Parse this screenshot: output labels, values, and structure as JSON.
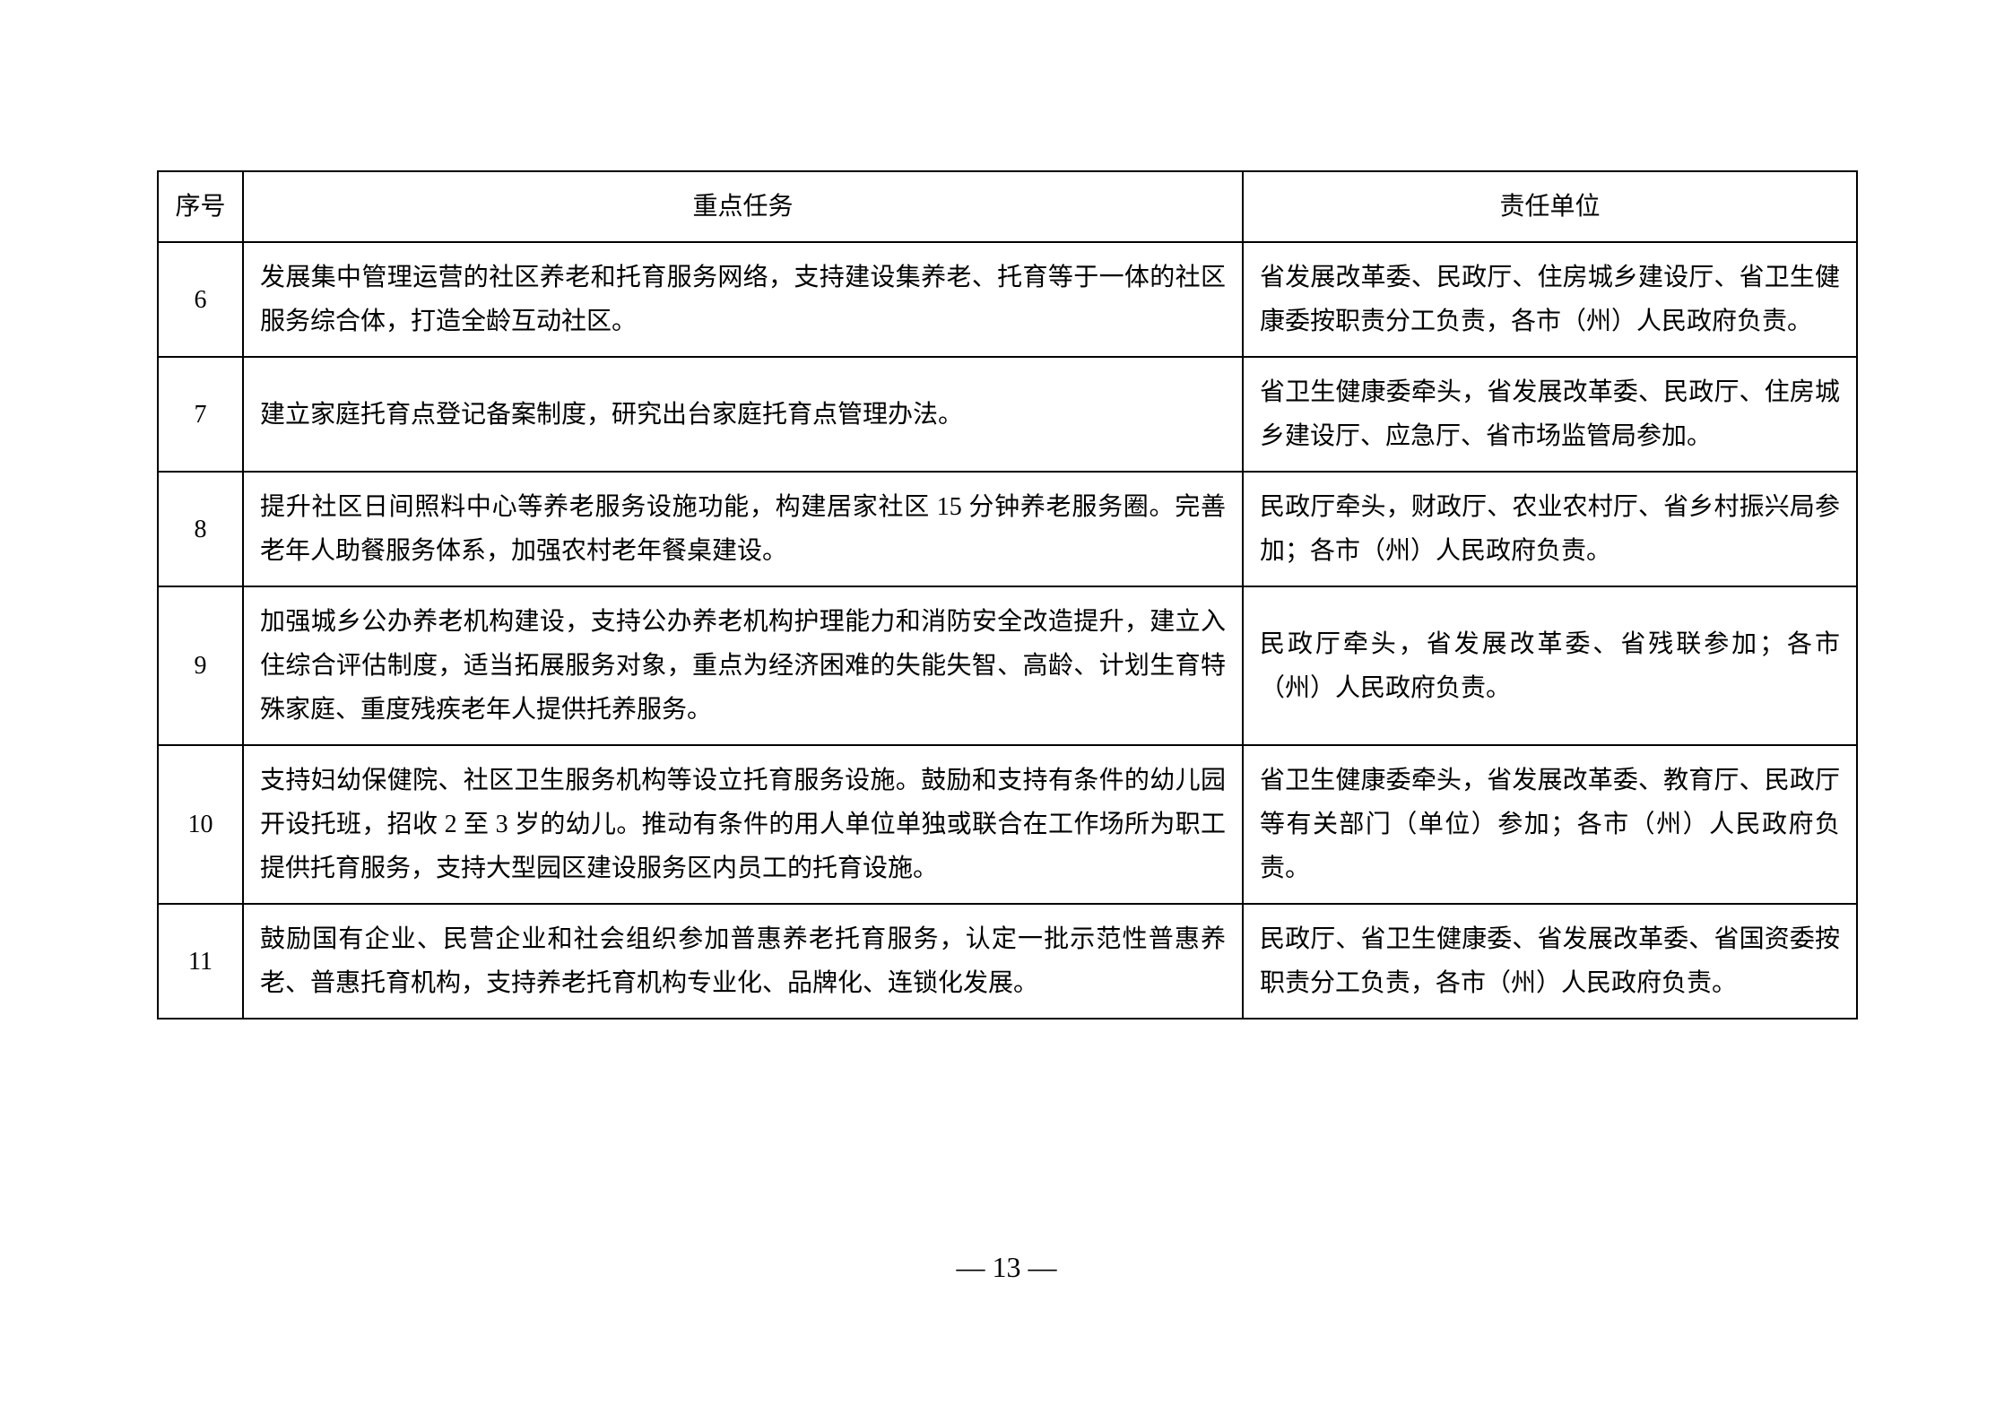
{
  "table": {
    "headers": {
      "seq": "序号",
      "task": "重点任务",
      "unit": "责任单位"
    },
    "rows": [
      {
        "seq": "6",
        "task": "发展集中管理运营的社区养老和托育服务网络，支持建设集养老、托育等于一体的社区服务综合体，打造全龄互动社区。",
        "unit": "省发展改革委、民政厅、住房城乡建设厅、省卫生健康委按职责分工负责，各市（州）人民政府负责。"
      },
      {
        "seq": "7",
        "task": "建立家庭托育点登记备案制度，研究出台家庭托育点管理办法。",
        "unit": "省卫生健康委牵头，省发展改革委、民政厅、住房城乡建设厅、应急厅、省市场监管局参加。"
      },
      {
        "seq": "8",
        "task": "提升社区日间照料中心等养老服务设施功能，构建居家社区 15 分钟养老服务圈。完善老年人助餐服务体系，加强农村老年餐桌建设。",
        "unit": "民政厅牵头，财政厅、农业农村厅、省乡村振兴局参加；各市（州）人民政府负责。"
      },
      {
        "seq": "9",
        "task": "加强城乡公办养老机构建设，支持公办养老机构护理能力和消防安全改造提升，建立入住综合评估制度，适当拓展服务对象，重点为经济困难的失能失智、高龄、计划生育特殊家庭、重度残疾老年人提供托养服务。",
        "unit": "民政厅牵头，省发展改革委、省残联参加；各市（州）人民政府负责。"
      },
      {
        "seq": "10",
        "task": "支持妇幼保健院、社区卫生服务机构等设立托育服务设施。鼓励和支持有条件的幼儿园开设托班，招收 2 至 3 岁的幼儿。推动有条件的用人单位单独或联合在工作场所为职工提供托育服务，支持大型园区建设服务区内员工的托育设施。",
        "unit": "省卫生健康委牵头，省发展改革委、教育厅、民政厅等有关部门（单位）参加；各市（州）人民政府负责。"
      },
      {
        "seq": "11",
        "task": "鼓励国有企业、民营企业和社会组织参加普惠养老托育服务，认定一批示范性普惠养老、普惠托育机构，支持养老托育机构专业化、品牌化、连锁化发展。",
        "unit": "民政厅、省卫生健康委、省发展改革委、省国资委按职责分工负责，各市（州）人民政府负责。"
      }
    ]
  },
  "page_number": "— 13 —",
  "colors": {
    "background": "#ffffff",
    "text": "#000000",
    "border": "#000000"
  },
  "typography": {
    "body_fontsize": 28,
    "page_number_fontsize": 32,
    "font_family": "SimSun"
  }
}
